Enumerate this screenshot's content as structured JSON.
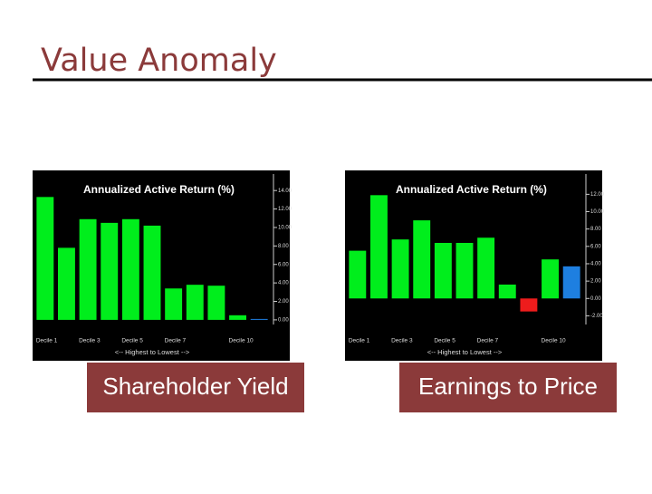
{
  "title": "Value Anomaly",
  "chart_data": [
    {
      "type": "bar",
      "title": "Annualized Active Return (%)",
      "caption": "Shareholder Yield",
      "x_label": "<-- Highest to Lowest -->",
      "categories": [
        "Decile 1",
        null,
        "Decile 3",
        null,
        "Decile 5",
        null,
        "Decile 7",
        null,
        null,
        "Decile 10",
        null
      ],
      "values": [
        13.3,
        7.8,
        10.9,
        10.5,
        10.9,
        10.2,
        3.4,
        3.8,
        3.7,
        0.5,
        0.1
      ],
      "colors": [
        "#00ee1c",
        "#00ee1c",
        "#00ee1c",
        "#00ee1c",
        "#00ee1c",
        "#00ee1c",
        "#00ee1c",
        "#00ee1c",
        "#00ee1c",
        "#00ee1c",
        "#1e7fe0"
      ],
      "ylim": [
        -0.5,
        15
      ],
      "yticks": [
        {
          "value": 0,
          "label": "0.00"
        },
        {
          "value": 2,
          "label": "2.00"
        },
        {
          "value": 4,
          "label": "4.00"
        },
        {
          "value": 6,
          "label": "6.00"
        },
        {
          "value": 8,
          "label": "8.00"
        },
        {
          "value": 10,
          "label": "10.00"
        },
        {
          "value": 12,
          "label": "12.00"
        },
        {
          "value": 14,
          "label": "14.00"
        }
      ]
    },
    {
      "type": "bar",
      "title": "Annualized Active Return (%)",
      "caption": "Earnings to Price",
      "x_label": "<-- Highest to Lowest -->",
      "categories": [
        "Decile 1",
        null,
        "Decile 3",
        null,
        "Decile 5",
        null,
        "Decile 7",
        null,
        null,
        "Decile 10",
        null
      ],
      "values": [
        5.5,
        11.9,
        6.8,
        9.0,
        6.4,
        6.4,
        7.0,
        1.6,
        -1.5,
        4.5,
        3.7
      ],
      "colors": [
        "#00ee1c",
        "#00ee1c",
        "#00ee1c",
        "#00ee1c",
        "#00ee1c",
        "#00ee1c",
        "#00ee1c",
        "#00ee1c",
        "#ee1c1c",
        "#00ee1c",
        "#1e7fe0"
      ],
      "ylim": [
        -3,
        13.5
      ],
      "yticks": [
        {
          "value": -2,
          "label": "-2.00"
        },
        {
          "value": 0,
          "label": "0.00"
        },
        {
          "value": 2,
          "label": "2.00"
        },
        {
          "value": 4,
          "label": "4.00"
        },
        {
          "value": 6,
          "label": "6.00"
        },
        {
          "value": 8,
          "label": "8.00"
        },
        {
          "value": 10,
          "label": "10.00"
        },
        {
          "value": 12,
          "label": "12.00"
        }
      ]
    }
  ]
}
